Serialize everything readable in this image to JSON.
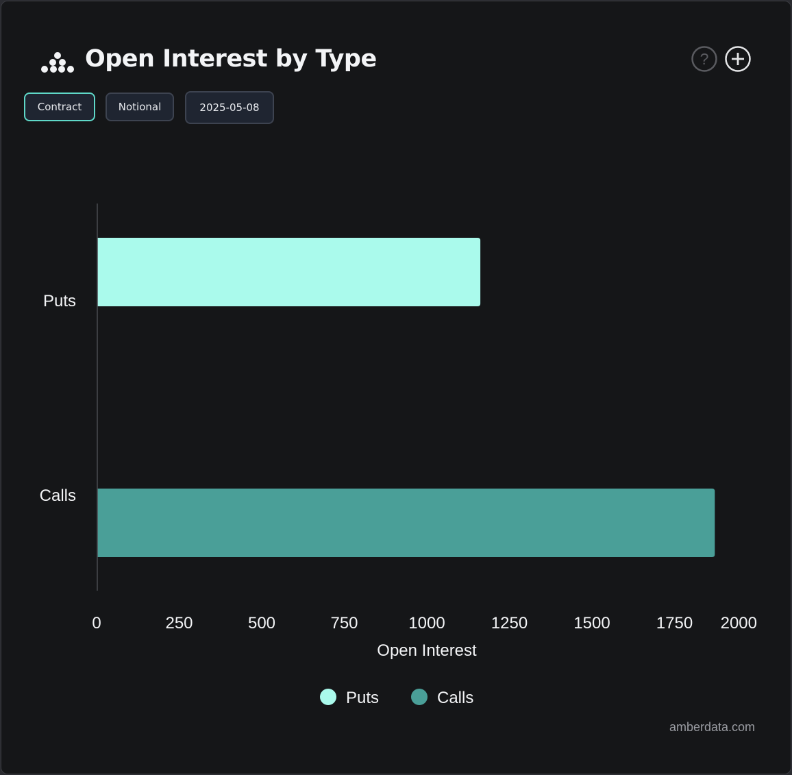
{
  "header": {
    "title": "Open Interest by Type",
    "logo_icon": "amberdata-logo-icon",
    "help_icon": "help-circle-icon",
    "add_icon": "plus-circle-icon"
  },
  "toolbar": {
    "buttons": [
      {
        "label": "Contract",
        "active": true
      },
      {
        "label": "Notional",
        "active": false
      },
      {
        "label": "2025-05-08",
        "active": false
      }
    ]
  },
  "chart_data": {
    "type": "bar",
    "orientation": "horizontal",
    "categories": [
      "Puts",
      "Calls"
    ],
    "values": [
      1160,
      1870
    ],
    "colors": [
      "#aafaec",
      "#4a9f98"
    ],
    "xlabel": "Open Interest",
    "ylabel": "",
    "xlim": [
      0,
      2000
    ],
    "xticks": [
      "0",
      "250",
      "500",
      "750",
      "1000",
      "1250",
      "1500",
      "1750",
      "2000"
    ],
    "grid": false,
    "legend": {
      "placement": "bottom",
      "entries": [
        {
          "name": "Puts",
          "color": "#aafaec"
        },
        {
          "name": "Calls",
          "color": "#4a9f98"
        }
      ]
    }
  },
  "watermark": "amberdata.com"
}
